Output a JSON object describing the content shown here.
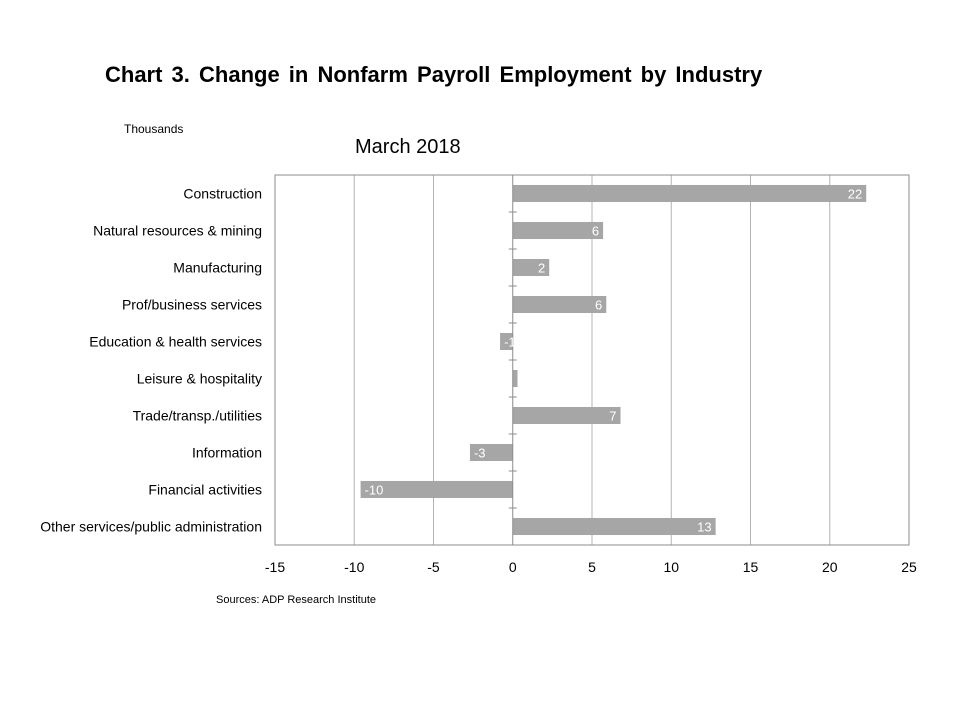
{
  "chart_data": {
    "type": "bar",
    "orientation": "horizontal",
    "title": "Chart 3. Change in Nonfarm Payroll Employment by Industry",
    "subtitle": "March 2018",
    "unit_label": "Thousands",
    "source": "Sources: ADP Research Institute",
    "categories": [
      "Construction",
      "Natural resources & mining",
      "Manufacturing",
      "Prof/business services",
      "Education & health services",
      "Leisure & hospitality",
      "Trade/transp./utilities",
      "Information",
      "Financial activities",
      "Other services/public administration"
    ],
    "values": [
      22.3,
      5.7,
      2.3,
      5.9,
      -0.8,
      0.3,
      6.8,
      -2.7,
      -9.6,
      12.8
    ],
    "data_labels": [
      "22",
      "6",
      "2",
      "6",
      "-1",
      "",
      "7",
      "-3",
      "-10",
      "13"
    ],
    "xlim": [
      -15,
      25
    ],
    "xticks": [
      -15,
      -10,
      -5,
      0,
      5,
      10,
      15,
      20,
      25
    ],
    "xtick_labels": [
      "-15",
      "-10",
      "-5",
      "0",
      "5",
      "10",
      "15",
      "20",
      "25"
    ],
    "grid": "vertical",
    "bar_color": "#a6a6a6",
    "grid_color": "#b4b4b4",
    "legend": "none"
  }
}
